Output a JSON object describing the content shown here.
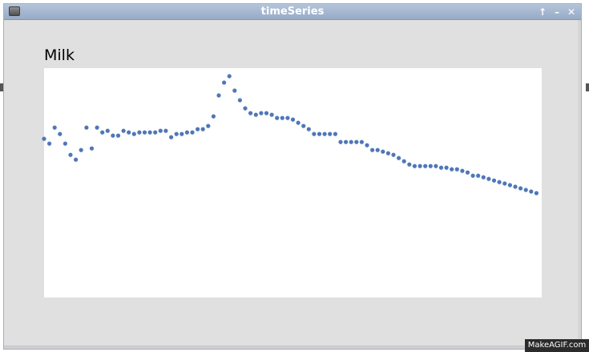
{
  "window": {
    "title": "timeSeries",
    "buttons": {
      "maximize": "↑",
      "minimize": "–",
      "close": "✕"
    }
  },
  "colors": {
    "point": "#4f77b8",
    "plot_background": "#ffffff",
    "window_background": "#e0e0e0"
  },
  "chart_data": {
    "type": "scatter",
    "title": "Milk",
    "xlabel": "",
    "ylabel": "",
    "grid": false,
    "legend": "none",
    "xlim": [
      0,
      94
    ],
    "ylim": [
      0,
      100
    ],
    "series": [
      {
        "values": [
          69.2,
          67.1,
          74.1,
          71.3,
          67.1,
          62.2,
          60.1,
          64.3,
          74.1,
          65.0,
          74.1,
          72.0,
          72.7,
          70.6,
          70.6,
          72.7,
          72.0,
          71.3,
          72.0,
          72.0,
          72.0,
          72.0,
          72.7,
          72.7,
          69.9,
          71.3,
          71.3,
          72.0,
          72.0,
          73.4,
          73.4,
          74.8,
          79.0,
          88.1,
          93.7,
          96.5,
          90.2,
          86.0,
          82.5,
          80.4,
          79.7,
          80.4,
          80.4,
          79.7,
          78.3,
          78.3,
          78.3,
          77.6,
          76.2,
          74.8,
          73.4,
          71.3,
          71.3,
          71.3,
          71.3,
          71.3,
          67.8,
          67.8,
          67.8,
          67.8,
          67.8,
          66.4,
          64.3,
          64.3,
          63.6,
          62.9,
          62.2,
          60.8,
          59.4,
          58.0,
          57.3,
          57.3,
          57.3,
          57.3,
          57.3,
          56.6,
          56.6,
          55.9,
          55.9,
          55.2,
          54.5,
          53.1,
          53.1,
          52.4,
          51.7,
          51.0,
          50.3,
          49.7,
          49.0,
          48.3,
          47.6,
          46.9,
          46.2,
          45.5
        ]
      }
    ]
  },
  "watermark": "MakeAGIF.com"
}
